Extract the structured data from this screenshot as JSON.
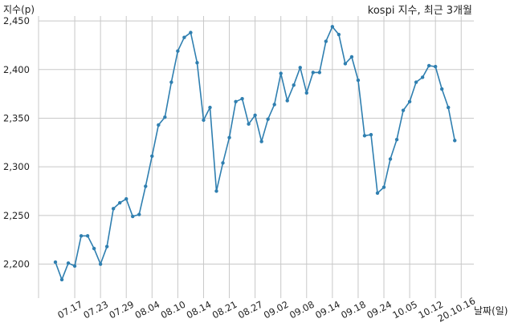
{
  "chart_data": {
    "type": "line",
    "title": "kospi 지수, 최근 3개월",
    "ylabel": "지수(p)",
    "xlabel": "날짜(일)",
    "ylim": [
      2165,
      2455
    ],
    "yticks": [
      2200,
      2250,
      2300,
      2350,
      2400,
      2450
    ],
    "ytick_labels": [
      "2,200",
      "2,250",
      "2,300",
      "2,350",
      "2,400",
      "2,450"
    ],
    "xtick_labels": [
      "07.17",
      "07.23",
      "07.29",
      "08.04",
      "08.10",
      "08.14",
      "08.21",
      "08.27",
      "09.02",
      "09.08",
      "09.14",
      "09.18",
      "09.24",
      "10.05",
      "10.12",
      "20.10.16"
    ],
    "xtick_index": [
      3,
      7,
      11,
      15,
      19,
      23,
      27,
      31,
      35,
      39,
      43,
      47,
      51,
      55,
      59,
      63
    ],
    "grid": true,
    "series_color": "#2f7fb0",
    "series": [
      {
        "values": [
          2202,
          2184,
          2201,
          2198,
          2229,
          2229,
          2216,
          2200,
          2218,
          2257,
          2263,
          2267,
          2249,
          2251,
          2280,
          2311,
          2343,
          2351,
          2387,
          2419,
          2433,
          2438,
          2407,
          2348,
          2361,
          2275,
          2304,
          2330,
          2367,
          2370,
          2344,
          2353,
          2326,
          2349,
          2364,
          2396,
          2368,
          2384,
          2402,
          2376,
          2397,
          2397,
          2429,
          2444,
          2436,
          2406,
          2413,
          2389,
          2332,
          2333,
          2273,
          2279,
          2308,
          2328,
          2358,
          2367,
          2387,
          2392,
          2404,
          2403,
          2380,
          2361,
          2327
        ]
      }
    ]
  }
}
